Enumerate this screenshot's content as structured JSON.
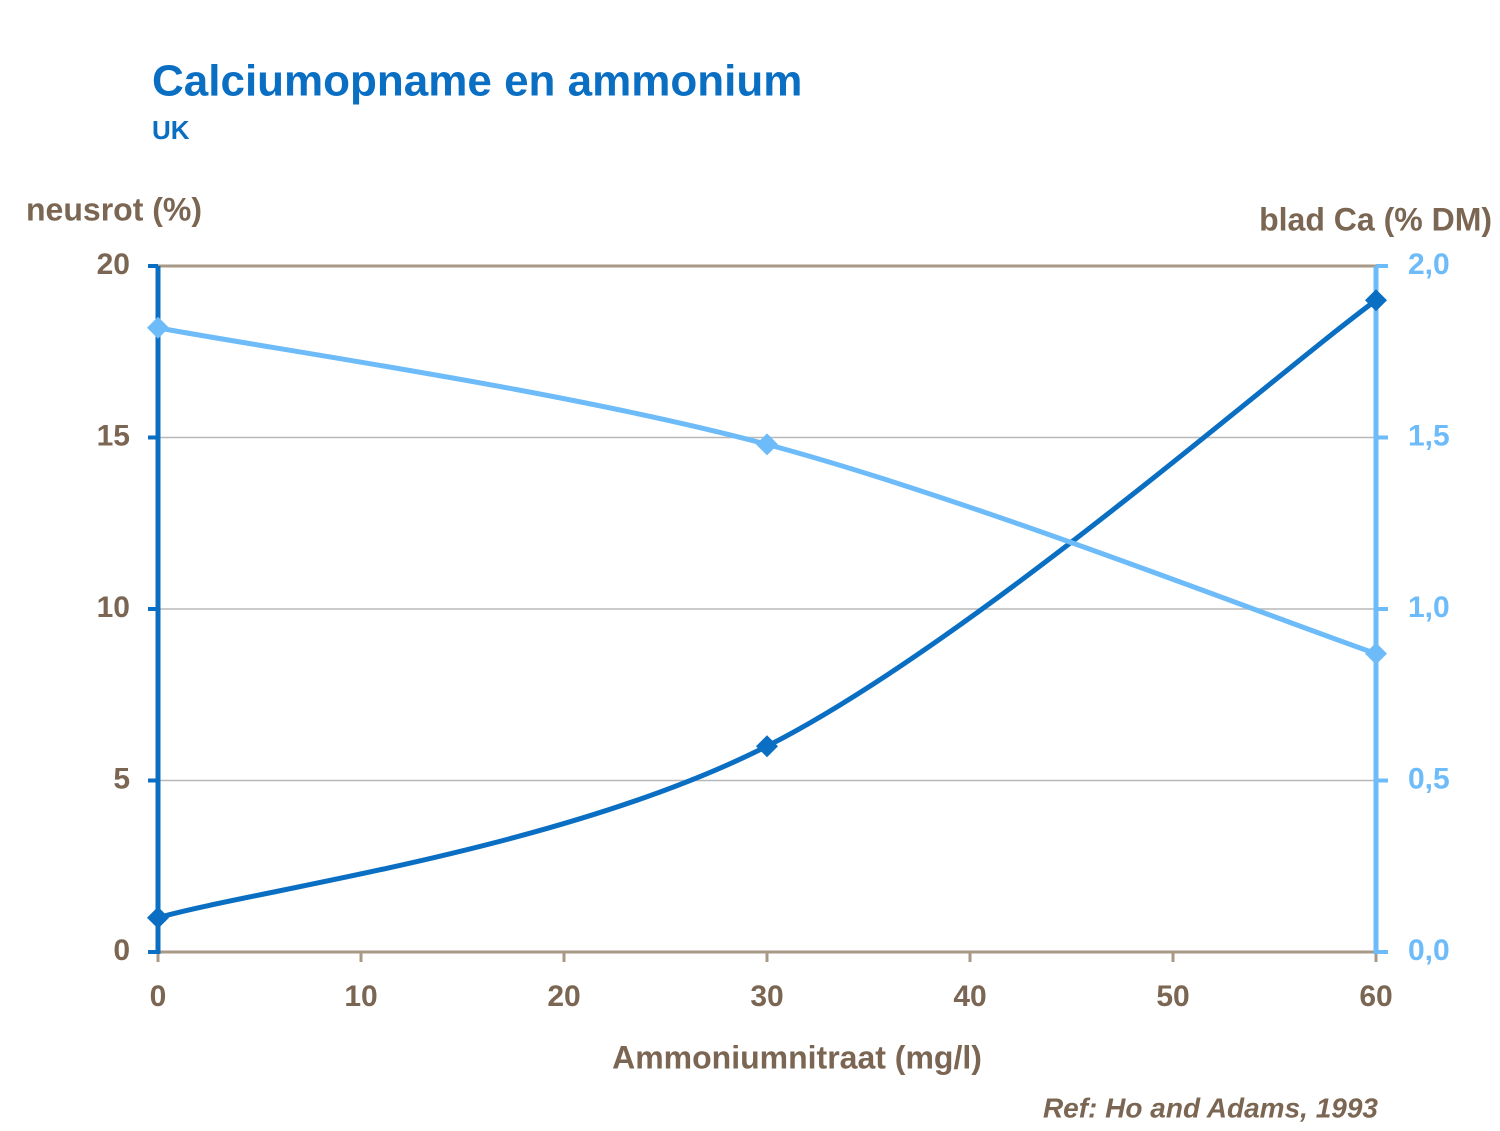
{
  "chart_data": {
    "type": "line",
    "title": "Calciumopname en ammonium",
    "subtitle": "UK",
    "x_label": "Ammoniumnitraat (mg/l)",
    "y_label": "neusrot (%)",
    "y2_label": "blad Ca (% DM)",
    "annotation": "Ref: Ho and Adams, 1993",
    "x": [
      0,
      30,
      60
    ],
    "series": [
      {
        "color": "#0a6fc2",
        "values": [
          1,
          6,
          19
        ]
      },
      {
        "color": "#6dbcf9",
        "values": [
          1.82,
          1.48,
          0.87
        ],
        "axis": "y2"
      }
    ],
    "xlim": [
      0,
      60
    ],
    "xticks": [
      0,
      10,
      20,
      30,
      40,
      50,
      60
    ],
    "ylim": [
      0,
      20
    ],
    "yticks": [
      0,
      5,
      10,
      15,
      20
    ],
    "y2lim": [
      0,
      2
    ],
    "y2ticks": [
      {
        "value": 0,
        "label": "0,0"
      },
      {
        "value": 0.5,
        "label": "0,5"
      },
      {
        "value": 1,
        "label": "1,0"
      },
      {
        "value": 1.5,
        "label": "1,5"
      },
      {
        "value": 2,
        "label": "2,0"
      }
    ],
    "grid": true,
    "smooth": true
  }
}
